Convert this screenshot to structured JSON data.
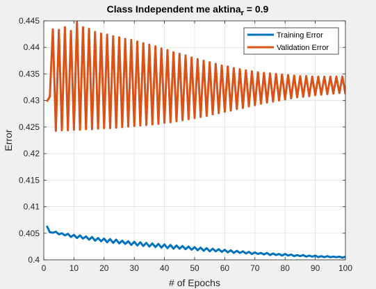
{
  "chart_data": {
    "type": "line",
    "title": "Class Independent me aktina",
    "title_subscript": "r",
    "title_suffix": " = 0.9",
    "xlabel": "# of Epochs",
    "ylabel": "Error",
    "xlim": [
      0,
      100
    ],
    "ylim": [
      0.4,
      0.445
    ],
    "xticks": [
      "0",
      "10",
      "20",
      "30",
      "40",
      "50",
      "60",
      "70",
      "80",
      "90",
      "100"
    ],
    "yticks": [
      "0.4",
      "0.405",
      "0.41",
      "0.415",
      "0.42",
      "0.425",
      "0.43",
      "0.435",
      "0.44",
      "0.445"
    ],
    "grid": true,
    "legend_position": "top-right",
    "x": [
      1,
      2,
      3,
      4,
      5,
      6,
      7,
      8,
      9,
      10,
      11,
      12,
      13,
      14,
      15,
      16,
      17,
      18,
      19,
      20,
      21,
      22,
      23,
      24,
      25,
      26,
      27,
      28,
      29,
      30,
      31,
      32,
      33,
      34,
      35,
      36,
      37,
      38,
      39,
      40,
      41,
      42,
      43,
      44,
      45,
      46,
      47,
      48,
      49,
      50,
      51,
      52,
      53,
      54,
      55,
      56,
      57,
      58,
      59,
      60,
      61,
      62,
      63,
      64,
      65,
      66,
      67,
      68,
      69,
      70,
      71,
      72,
      73,
      74,
      75,
      76,
      77,
      78,
      79,
      80,
      81,
      82,
      83,
      84,
      85,
      86,
      87,
      88,
      89,
      90,
      91,
      92,
      93,
      94,
      95,
      96,
      97,
      98,
      99,
      100
    ],
    "series": [
      {
        "name": "Training Error",
        "color": "#0072BD",
        "values": [
          0.4064,
          0.4052,
          0.4051,
          0.4053,
          0.4048,
          0.405,
          0.4046,
          0.4049,
          0.4043,
          0.4047,
          0.4041,
          0.4046,
          0.404,
          0.4044,
          0.4038,
          0.4043,
          0.4036,
          0.4041,
          0.4035,
          0.404,
          0.4033,
          0.4039,
          0.4032,
          0.4038,
          0.4031,
          0.4036,
          0.403,
          0.4035,
          0.4028,
          0.4034,
          0.4027,
          0.4033,
          0.4026,
          0.4032,
          0.4025,
          0.4031,
          0.4024,
          0.403,
          0.4023,
          0.4029,
          0.4022,
          0.4028,
          0.4021,
          0.4027,
          0.4021,
          0.4026,
          0.402,
          0.4025,
          0.4019,
          0.4024,
          0.4018,
          0.4023,
          0.4017,
          0.4022,
          0.4016,
          0.4021,
          0.4016,
          0.402,
          0.4015,
          0.4019,
          0.4014,
          0.4018,
          0.4013,
          0.4017,
          0.4013,
          0.4016,
          0.4012,
          0.4015,
          0.4011,
          0.4014,
          0.4011,
          0.4013,
          0.401,
          0.4013,
          0.4009,
          0.4012,
          0.4009,
          0.4011,
          0.4008,
          0.4011,
          0.4008,
          0.401,
          0.4007,
          0.4009,
          0.4007,
          0.4009,
          0.4006,
          0.4008,
          0.4006,
          0.4008,
          0.4005,
          0.4007,
          0.4005,
          0.4007,
          0.4005,
          0.4006,
          0.4005,
          0.4006,
          0.4004,
          0.4006
        ]
      },
      {
        "name": "Validation Error",
        "color": "#D95319",
        "values": [
          0.4298,
          0.4307,
          0.4434,
          0.4243,
          0.4433,
          0.4244,
          0.4438,
          0.4244,
          0.4431,
          0.4245,
          0.4448,
          0.4245,
          0.4438,
          0.4246,
          0.4435,
          0.4246,
          0.4429,
          0.4247,
          0.4426,
          0.4248,
          0.4424,
          0.4248,
          0.4421,
          0.4249,
          0.4419,
          0.425,
          0.4416,
          0.4251,
          0.4414,
          0.4252,
          0.4411,
          0.4253,
          0.4408,
          0.4254,
          0.4405,
          0.4255,
          0.4402,
          0.4256,
          0.4398,
          0.4258,
          0.4395,
          0.4259,
          0.4391,
          0.4261,
          0.4388,
          0.4263,
          0.4385,
          0.4265,
          0.4381,
          0.4267,
          0.4378,
          0.4269,
          0.4375,
          0.4271,
          0.4372,
          0.4274,
          0.4369,
          0.4276,
          0.4366,
          0.4279,
          0.4364,
          0.4281,
          0.4361,
          0.4284,
          0.4359,
          0.4286,
          0.4357,
          0.4289,
          0.4355,
          0.4291,
          0.4353,
          0.4294,
          0.4352,
          0.4296,
          0.4351,
          0.4298,
          0.435,
          0.43,
          0.4349,
          0.4302,
          0.4348,
          0.4304,
          0.4347,
          0.4306,
          0.4346,
          0.4307,
          0.4346,
          0.4308,
          0.4345,
          0.431,
          0.4345,
          0.4311,
          0.4345,
          0.4312,
          0.4345,
          0.4313,
          0.4345,
          0.4314,
          0.4345,
          0.4312
        ]
      }
    ]
  }
}
